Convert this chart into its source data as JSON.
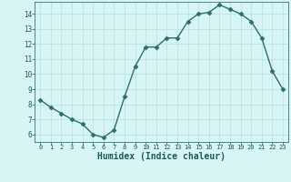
{
  "x": [
    0,
    1,
    2,
    3,
    4,
    5,
    6,
    7,
    8,
    9,
    10,
    11,
    12,
    13,
    14,
    15,
    16,
    17,
    18,
    19,
    20,
    21,
    22,
    23
  ],
  "y": [
    8.3,
    7.8,
    7.4,
    7.0,
    6.7,
    6.0,
    5.8,
    6.3,
    8.5,
    10.5,
    11.8,
    11.8,
    12.4,
    12.4,
    13.5,
    14.0,
    14.1,
    14.6,
    14.3,
    14.0,
    13.5,
    12.4,
    10.2,
    9.0
  ],
  "line_color": "#2d6e6e",
  "marker": "D",
  "markersize": 2.5,
  "linewidth": 1.0,
  "bg_color": "#d8f5f5",
  "grid_color": "#b8dede",
  "xlabel": "Humidex (Indice chaleur)",
  "tick_color": "#1a5a5a",
  "xlabel_fontsize": 7,
  "yticks": [
    6,
    7,
    8,
    9,
    10,
    11,
    12,
    13,
    14
  ],
  "xticks": [
    0,
    1,
    2,
    3,
    4,
    5,
    6,
    7,
    8,
    9,
    10,
    11,
    12,
    13,
    14,
    15,
    16,
    17,
    18,
    19,
    20,
    21,
    22,
    23
  ],
  "ylim": [
    5.5,
    14.8
  ],
  "xlim": [
    -0.5,
    23.5
  ]
}
